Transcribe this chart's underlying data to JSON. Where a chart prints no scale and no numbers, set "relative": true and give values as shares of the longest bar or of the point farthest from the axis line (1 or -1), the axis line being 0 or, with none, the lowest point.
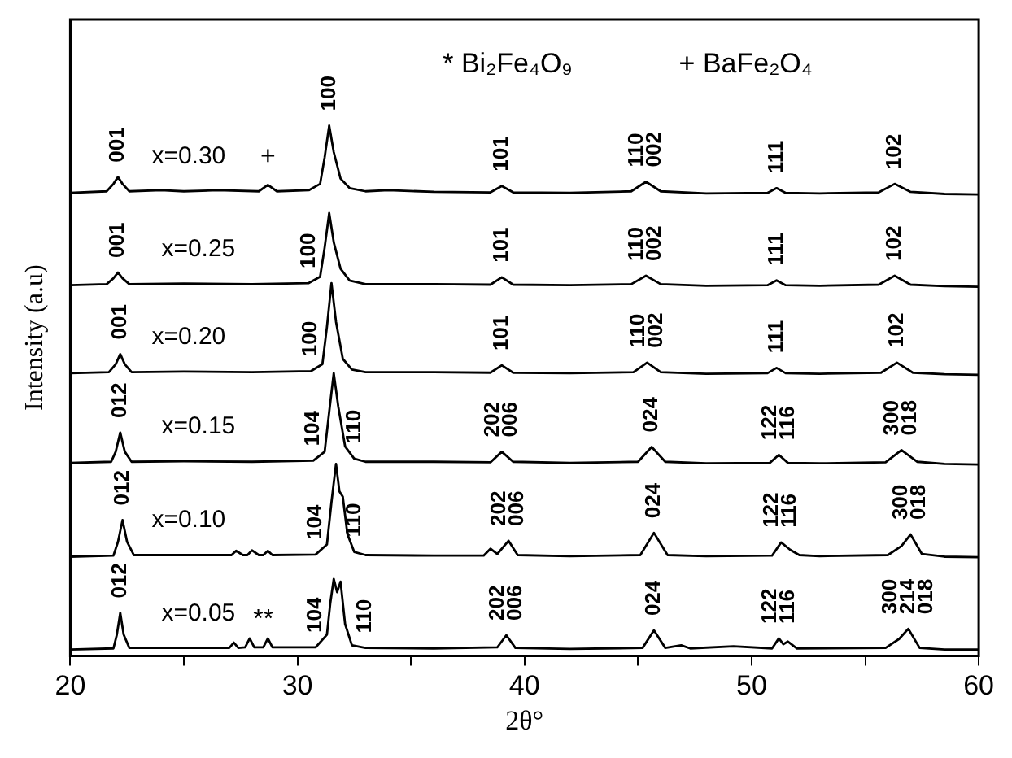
{
  "chart_data": {
    "type": "line",
    "relative": true,
    "xlabel": "2θ°",
    "ylabel": "Intensity (a.u)",
    "xlim": [
      20,
      60
    ],
    "xticks": [
      20,
      {
        "value": 25,
        "label": null
      },
      30,
      {
        "value": 35,
        "label": null
      },
      40,
      {
        "value": 45,
        "label": null
      },
      50,
      {
        "value": 55,
        "label": null
      },
      60
    ],
    "series": [
      {
        "name": "x=0.30",
        "color": "#000000",
        "x": [
          20,
          21.6,
          21.9,
          22.1,
          22.3,
          22.6,
          24,
          25,
          26.5,
          28.3,
          28.7,
          29.1,
          30.5,
          31.0,
          31.2,
          31.4,
          31.6,
          31.9,
          32.3,
          33,
          34,
          36,
          38.5,
          39.0,
          39.5,
          42,
          44.7,
          45.35,
          46.0,
          48,
          50.7,
          51.1,
          51.5,
          53,
          55.6,
          56.3,
          57.0,
          58.5,
          60
        ],
        "values": [
          0.873,
          0.876,
          0.89,
          0.903,
          0.89,
          0.876,
          0.878,
          0.876,
          0.878,
          0.876,
          0.888,
          0.876,
          0.878,
          0.89,
          0.94,
          1.0,
          0.95,
          0.9,
          0.882,
          0.876,
          0.878,
          0.875,
          0.874,
          0.886,
          0.874,
          0.873,
          0.876,
          0.894,
          0.876,
          0.872,
          0.873,
          0.882,
          0.873,
          0.872,
          0.874,
          0.89,
          0.875,
          0.871,
          0.87
        ]
      },
      {
        "name": "x=0.25",
        "color": "#000000",
        "x": [
          20,
          21.6,
          21.9,
          22.1,
          22.3,
          22.6,
          25,
          28,
          30.5,
          31.0,
          31.2,
          31.4,
          31.6,
          31.9,
          32.3,
          33,
          36,
          38.5,
          39.0,
          39.5,
          42,
          44.7,
          45.35,
          46.0,
          48,
          50.7,
          51.1,
          51.5,
          53,
          55.6,
          56.3,
          57.0,
          58.5,
          60
        ],
        "values": [
          0.699,
          0.701,
          0.712,
          0.723,
          0.712,
          0.701,
          0.702,
          0.701,
          0.703,
          0.715,
          0.77,
          0.835,
          0.78,
          0.73,
          0.708,
          0.701,
          0.701,
          0.7,
          0.714,
          0.7,
          0.699,
          0.701,
          0.717,
          0.701,
          0.698,
          0.699,
          0.708,
          0.699,
          0.698,
          0.7,
          0.717,
          0.7,
          0.697,
          0.696
        ]
      },
      {
        "name": "x=0.20",
        "color": "#000000",
        "x": [
          20,
          21.7,
          22.0,
          22.2,
          22.4,
          22.7,
          25,
          28,
          30.6,
          31.1,
          31.3,
          31.5,
          31.7,
          32.0,
          32.4,
          33,
          36,
          38.5,
          39.0,
          39.5,
          42,
          44.8,
          45.4,
          46.0,
          48,
          50.7,
          51.1,
          51.5,
          53,
          55.7,
          56.4,
          57.1,
          58.5,
          60
        ],
        "values": [
          0.533,
          0.535,
          0.55,
          0.569,
          0.55,
          0.535,
          0.536,
          0.535,
          0.537,
          0.55,
          0.62,
          0.703,
          0.63,
          0.56,
          0.54,
          0.535,
          0.535,
          0.534,
          0.548,
          0.534,
          0.533,
          0.535,
          0.553,
          0.535,
          0.532,
          0.533,
          0.543,
          0.533,
          0.532,
          0.534,
          0.553,
          0.534,
          0.531,
          0.53
        ]
      },
      {
        "name": "x=0.15",
        "color": "#000000",
        "x": [
          20,
          21.8,
          22.0,
          22.2,
          22.4,
          22.7,
          25,
          28,
          30.7,
          31.2,
          31.4,
          31.6,
          31.8,
          32.1,
          32.5,
          33,
          36,
          38.5,
          39.0,
          39.5,
          42,
          45.0,
          45.6,
          46.2,
          48,
          50.8,
          51.2,
          51.6,
          53,
          55.9,
          56.6,
          57.3,
          58.5,
          60
        ],
        "values": [
          0.364,
          0.366,
          0.385,
          0.421,
          0.385,
          0.366,
          0.367,
          0.366,
          0.368,
          0.385,
          0.46,
          0.533,
          0.47,
          0.395,
          0.372,
          0.366,
          0.366,
          0.365,
          0.385,
          0.366,
          0.364,
          0.366,
          0.394,
          0.366,
          0.363,
          0.364,
          0.379,
          0.364,
          0.363,
          0.365,
          0.388,
          0.366,
          0.362,
          0.361
        ]
      },
      {
        "name": "x=0.10",
        "color": "#000000",
        "x": [
          20,
          21.9,
          22.1,
          22.3,
          22.5,
          22.8,
          25,
          27.1,
          27.3,
          27.6,
          27.8,
          28.0,
          28.3,
          28.5,
          28.7,
          28.9,
          30.8,
          31.3,
          31.5,
          31.7,
          31.85,
          32.0,
          32.2,
          32.5,
          33,
          36,
          38.2,
          38.5,
          38.8,
          39.3,
          39.7,
          42,
          45.1,
          45.7,
          46.3,
          48,
          50.9,
          51.3,
          51.7,
          52.1,
          53,
          56.0,
          56.6,
          57.0,
          57.5,
          58.5,
          60
        ],
        "values": [
          0.187,
          0.189,
          0.215,
          0.256,
          0.215,
          0.19,
          0.19,
          0.19,
          0.198,
          0.19,
          0.19,
          0.199,
          0.19,
          0.19,
          0.198,
          0.19,
          0.191,
          0.21,
          0.29,
          0.362,
          0.31,
          0.3,
          0.23,
          0.196,
          0.19,
          0.189,
          0.189,
          0.202,
          0.192,
          0.217,
          0.19,
          0.188,
          0.19,
          0.232,
          0.19,
          0.188,
          0.189,
          0.214,
          0.2,
          0.19,
          0.188,
          0.19,
          0.207,
          0.229,
          0.192,
          0.187,
          0.186
        ]
      },
      {
        "name": "x=0.05",
        "color": "#000000",
        "x": [
          20,
          21.9,
          22.05,
          22.2,
          22.35,
          22.6,
          25,
          27.0,
          27.2,
          27.4,
          27.7,
          27.9,
          28.1,
          28.5,
          28.7,
          28.9,
          30.8,
          31.3,
          31.45,
          31.6,
          31.75,
          31.9,
          32.1,
          32.4,
          33,
          36,
          38.8,
          39.2,
          39.6,
          42,
          45.2,
          45.7,
          46.2,
          46.9,
          47.3,
          49.2,
          50.9,
          51.2,
          51.4,
          51.6,
          52,
          55.9,
          56.5,
          56.9,
          57.4,
          58.5,
          60
        ],
        "values": [
          0.012,
          0.014,
          0.04,
          0.081,
          0.04,
          0.015,
          0.015,
          0.015,
          0.025,
          0.015,
          0.016,
          0.033,
          0.016,
          0.016,
          0.033,
          0.016,
          0.016,
          0.04,
          0.1,
          0.145,
          0.12,
          0.14,
          0.06,
          0.02,
          0.015,
          0.014,
          0.016,
          0.039,
          0.015,
          0.013,
          0.015,
          0.048,
          0.015,
          0.02,
          0.014,
          0.018,
          0.014,
          0.033,
          0.022,
          0.027,
          0.014,
          0.015,
          0.032,
          0.051,
          0.015,
          0.012,
          0.012
        ]
      }
    ],
    "annotations": [
      "* Bi₂Fe₄O₉",
      "+ BaFe₂O₄",
      {
        "text": "001",
        "x": 22.1,
        "y": 0.903
      },
      {
        "text": "+",
        "x": 28.7,
        "y": 0.888
      },
      {
        "text": "100",
        "x": 31.4,
        "y": 1.0
      },
      {
        "text": "101",
        "x": 39.0,
        "y": 0.886
      },
      {
        "text": "110\n002",
        "x": 45.35,
        "y": 0.894
      },
      {
        "text": "111",
        "x": 51.1,
        "y": 0.882
      },
      {
        "text": "102",
        "x": 56.3,
        "y": 0.89
      },
      {
        "text": "001",
        "x": 22.1,
        "y": 0.723
      },
      {
        "text": "100",
        "x": 30.5,
        "y": 0.703
      },
      {
        "text": "101",
        "x": 39.0,
        "y": 0.714
      },
      {
        "text": "110\n002",
        "x": 45.35,
        "y": 0.717
      },
      {
        "text": "111",
        "x": 51.1,
        "y": 0.708
      },
      {
        "text": "102",
        "x": 56.3,
        "y": 0.717
      },
      {
        "text": "001",
        "x": 22.2,
        "y": 0.569
      },
      {
        "text": "100",
        "x": 30.6,
        "y": 0.537
      },
      {
        "text": "101",
        "x": 39.0,
        "y": 0.548
      },
      {
        "text": "110\n002",
        "x": 45.4,
        "y": 0.553
      },
      {
        "text": "111",
        "x": 51.1,
        "y": 0.543
      },
      {
        "text": "102",
        "x": 56.4,
        "y": 0.553
      },
      {
        "text": "012",
        "x": 22.2,
        "y": 0.421
      },
      {
        "text": "104",
        "x": 30.7,
        "y": 0.368
      },
      {
        "text": "110",
        "x": 32.5,
        "y": 0.372
      },
      {
        "text": "202\n006",
        "x": 39.0,
        "y": 0.385
      },
      {
        "text": "024",
        "x": 45.6,
        "y": 0.394
      },
      {
        "text": "122\n116",
        "x": 51.2,
        "y": 0.379
      },
      {
        "text": "300\n018",
        "x": 56.6,
        "y": 0.388
      },
      {
        "text": "012",
        "x": 22.3,
        "y": 0.256
      },
      {
        "text": "104",
        "x": 30.8,
        "y": 0.191
      },
      {
        "text": "110",
        "x": 32.5,
        "y": 0.196
      },
      {
        "text": "202\n006",
        "x": 39.3,
        "y": 0.217
      },
      {
        "text": "024",
        "x": 45.7,
        "y": 0.232
      },
      {
        "text": "122\n116",
        "x": 51.3,
        "y": 0.214
      },
      {
        "text": "300\n018",
        "x": 57.0,
        "y": 0.229
      },
      {
        "text": "012",
        "x": 22.2,
        "y": 0.081
      },
      {
        "text": "104",
        "x": 30.8,
        "y": 0.016
      },
      {
        "text": "110",
        "x": 33,
        "y": 0.015
      },
      {
        "text": "202\n006",
        "x": 39.2,
        "y": 0.039
      },
      {
        "text": "024",
        "x": 45.7,
        "y": 0.048
      },
      {
        "text": "122\n116",
        "x": 51.2,
        "y": 0.033
      },
      {
        "text": "300\n214\n018",
        "x": 56.9,
        "y": 0.051
      },
      {
        "text": "**",
        "x": 28.5,
        "y": 0.016
      }
    ]
  }
}
